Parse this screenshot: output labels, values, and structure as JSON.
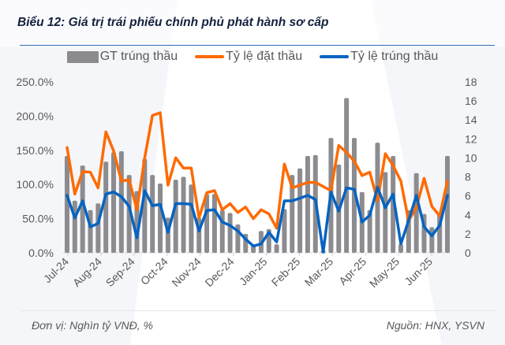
{
  "title": "Biểu 12: Giá trị trái phiếu chính phủ phát hành sơ cấp",
  "footer": {
    "unit": "Đơn vị: Nghìn tỷ VNĐ, %",
    "source": "Nguồn: HNX, YSVN"
  },
  "colors": {
    "bars": "#8c8c90",
    "bid_ratio": "#ff6a00",
    "win_ratio": "#0563c1",
    "title": "#14213d",
    "rule": "#2e6db4"
  },
  "chart_data": {
    "type": "bar+line",
    "legend_position": "top",
    "grid": false,
    "x_tick_labels": [
      "Jul-24",
      "Aug-24",
      "Sep-24",
      "Oct-24",
      "Nov-24",
      "Dec-24",
      "Jan-25",
      "Feb-25",
      "Mar-25",
      "Apr-25",
      "May-25",
      "Jun-25"
    ],
    "y_left": {
      "min": 0,
      "max": 250,
      "step": 50,
      "tick_labels": [
        "0.0%",
        "50.0%",
        "100.0%",
        "150.0%",
        "200.0%",
        "250.0%"
      ]
    },
    "y_right": {
      "min": 0,
      "max": 18,
      "step": 2,
      "tick_labels": [
        "0",
        "2",
        "4",
        "6",
        "8",
        "10",
        "12",
        "14",
        "16",
        "18"
      ]
    },
    "series": [
      {
        "name": "GT trúng thầu",
        "type": "bar",
        "axis": "right",
        "values": [
          10.2,
          5.5,
          9.2,
          4.5,
          5.2,
          9.6,
          10.6,
          10.7,
          8.2,
          6.5,
          9.9,
          8.2,
          7.3,
          3.7,
          7.7,
          8.0,
          7.2,
          3.7,
          6.2,
          6.2,
          4.5,
          4.2,
          3.0,
          2.0,
          0.8,
          2.3,
          2.5,
          0.9,
          4.6,
          8.2,
          8.9,
          10.2,
          10.3,
          0.3,
          12.1,
          9.3,
          16.3,
          12.1,
          6.4,
          4.5,
          11.6,
          8.5,
          10.2,
          0.9,
          4.5,
          8.4,
          4.1,
          2.7,
          4.1,
          10.2
        ]
      },
      {
        "name": "Tỷ lệ đặt thầu",
        "type": "line",
        "axis": "left",
        "values": [
          154,
          86,
          119,
          118,
          95,
          177,
          149,
          105,
          107,
          63,
          139,
          201,
          205,
          99,
          139,
          124,
          124,
          51,
          88,
          91,
          63,
          72,
          59,
          67,
          50,
          63,
          57,
          36,
          130,
          95,
          99,
          103,
          103,
          97,
          91,
          157,
          147,
          134,
          113,
          118,
          76,
          145,
          128,
          105,
          47,
          66,
          109,
          68,
          54,
          105
        ]
      },
      {
        "name": "Tỷ lệ trúng thầu",
        "type": "line",
        "axis": "left",
        "values": [
          84,
          51,
          76,
          38,
          43,
          86,
          89,
          82,
          68,
          22,
          91,
          69,
          71,
          30,
          72,
          72,
          71,
          32,
          62,
          63,
          45,
          40,
          32,
          20,
          10,
          13,
          30,
          16,
          76,
          76,
          80,
          84,
          78,
          1,
          89,
          61,
          95,
          93,
          45,
          55,
          96,
          66,
          86,
          13,
          47,
          84,
          38,
          25,
          40,
          84
        ]
      }
    ]
  }
}
